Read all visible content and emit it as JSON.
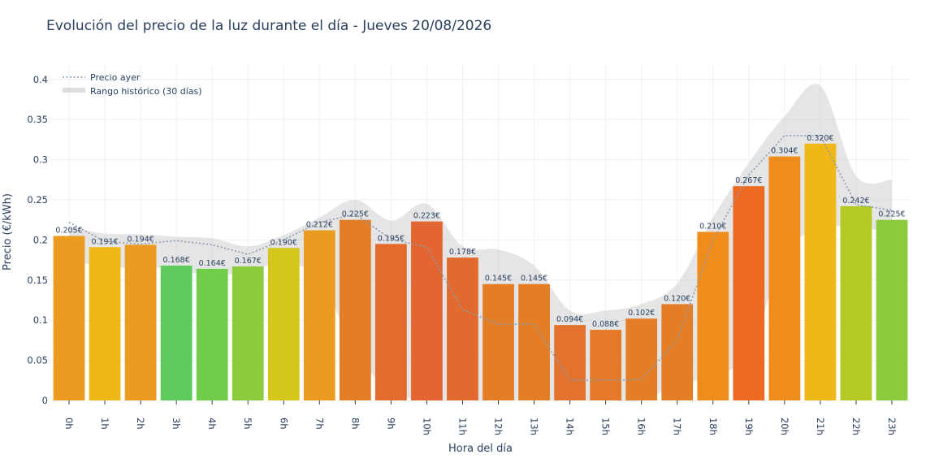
{
  "title": "Evolución del precio de la luz durante el día - Jueves 20/08/2026",
  "chart_data": {
    "type": "bar",
    "title": "Evolución del precio de la luz durante el día - Jueves 20/08/2026",
    "xlabel": "Hora del día",
    "ylabel": "Precio (€/kWh)",
    "ylim": [
      0,
      0.42
    ],
    "yticks": [
      "0",
      "0.05",
      "0.1",
      "0.15",
      "0.2",
      "0.25",
      "0.3",
      "0.35",
      "0.4"
    ],
    "categories": [
      "0h",
      "1h",
      "2h",
      "3h",
      "4h",
      "5h",
      "6h",
      "7h",
      "8h",
      "9h",
      "10h",
      "11h",
      "12h",
      "13h",
      "14h",
      "15h",
      "16h",
      "17h",
      "18h",
      "19h",
      "20h",
      "21h",
      "22h",
      "23h"
    ],
    "series": [
      {
        "values": [
          0.205,
          0.191,
          0.194,
          0.168,
          0.164,
          0.167,
          0.19,
          0.212,
          0.225,
          0.195,
          0.223,
          0.178,
          0.145,
          0.145,
          0.094,
          0.088,
          0.102,
          0.12,
          0.21,
          0.267,
          0.304,
          0.32,
          0.242,
          0.225
        ],
        "labels": [
          "0.205€",
          "0.191€",
          "0.194€",
          "0.168€",
          "0.164€",
          "0.167€",
          "0.190€",
          "0.212€",
          "0.225€",
          "0.195€",
          "0.223€",
          "0.178€",
          "0.145€",
          "0.145€",
          "0.094€",
          "0.088€",
          "0.102€",
          "0.120€",
          "0.210€",
          "0.267€",
          "0.304€",
          "0.320€",
          "0.242€",
          "0.225€"
        ],
        "colors": [
          "#eb9b1f",
          "#f0b816",
          "#eb9b1f",
          "#5ccb5b",
          "#72cc4c",
          "#8bcb3e",
          "#d4c61b",
          "#eb9b1f",
          "#e47e26",
          "#e46a2e",
          "#e26532",
          "#e26a2e",
          "#e47e26",
          "#e47e26",
          "#e2722e",
          "#e47a28",
          "#e47e26",
          "#e47e26",
          "#f08c1c",
          "#ee6a22",
          "#f08c1c",
          "#f0b816",
          "#b4c826",
          "#8bcb3e"
        ]
      },
      {
        "name": "Precio ayer",
        "values": [
          0.222,
          0.198,
          0.195,
          0.199,
          0.194,
          0.182,
          0.2,
          0.222,
          0.232,
          0.201,
          0.191,
          0.113,
          0.095,
          0.095,
          0.025,
          0.025,
          0.026,
          0.075,
          0.2,
          0.281,
          0.33,
          0.33,
          0.244,
          0.237
        ]
      },
      {
        "name": "Rango histórico (30 días)",
        "upper": [
          0.216,
          0.208,
          0.207,
          0.204,
          0.202,
          0.192,
          0.206,
          0.228,
          0.25,
          0.224,
          0.245,
          0.192,
          0.188,
          0.168,
          0.112,
          0.112,
          0.12,
          0.146,
          0.228,
          0.296,
          0.354,
          0.392,
          0.28,
          0.275
        ],
        "lower": [
          0.176,
          0.166,
          0.166,
          0.164,
          0.155,
          0.162,
          0.17,
          0.152,
          0.06,
          0.012,
          0.0,
          0.0,
          0.0,
          0.0,
          0.0,
          0.0,
          0.0,
          0.02,
          0.03,
          0.06,
          0.18,
          0.215,
          0.215,
          0.21
        ]
      }
    ],
    "legend": {
      "placement": "top-left",
      "items": [
        "Precio ayer",
        "Rango histórico (30 días)"
      ]
    },
    "colors": {
      "grid": "#ebf0f8",
      "line": "#8a9bb0",
      "band": "#c8c8c8",
      "text": "#2a3f5f"
    }
  }
}
